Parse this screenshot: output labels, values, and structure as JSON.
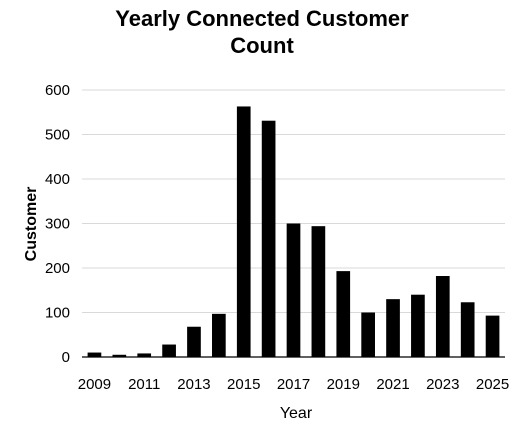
{
  "chart_data": {
    "type": "bar",
    "title_lines": [
      "Yearly Connected Customer",
      "Count"
    ],
    "xlabel": "Year",
    "ylabel": "Customer",
    "categories": [
      "2009",
      "2010",
      "2011",
      "2012",
      "2013",
      "2014",
      "2015",
      "2016",
      "2017",
      "2018",
      "2019",
      "2020",
      "2021",
      "2022",
      "2023",
      "2024",
      "2025"
    ],
    "values": [
      10,
      5,
      8,
      28,
      68,
      97,
      563,
      531,
      300,
      294,
      193,
      100,
      130,
      140,
      182,
      123,
      93
    ],
    "x_tick_labels": [
      "2009",
      "",
      "2011",
      "",
      "2013",
      "",
      "2015",
      "",
      "2017",
      "",
      "2019",
      "",
      "2021",
      "",
      "2023",
      "",
      "2025"
    ],
    "y_ticks": [
      0,
      100,
      200,
      300,
      400,
      500,
      600
    ],
    "ylim": [
      0,
      600
    ],
    "grid": true,
    "legend": "none",
    "bar_color": "#000000"
  }
}
